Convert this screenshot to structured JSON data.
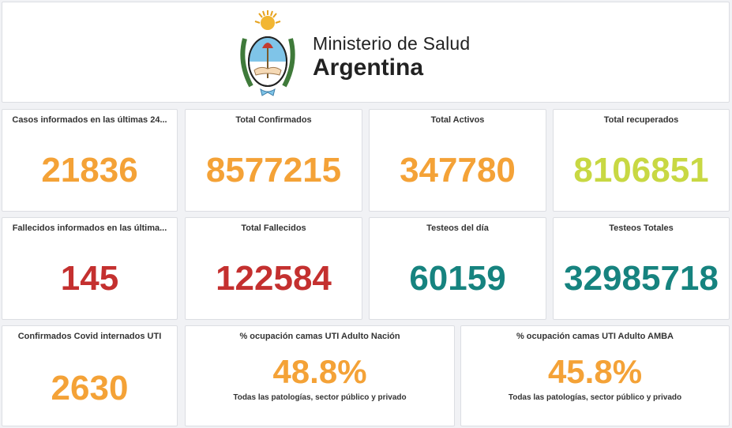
{
  "header": {
    "line1": "Ministerio de Salud",
    "line2": "Argentina"
  },
  "colors": {
    "orange": "#f4a237",
    "lime": "#c8d843",
    "red": "#c4302f",
    "teal": "#16837f"
  },
  "cards": [
    {
      "title": "Casos informados en las últimas 24...",
      "value": "21836",
      "color": "orange"
    },
    {
      "title": "Total Confirmados",
      "value": "8577215",
      "color": "orange"
    },
    {
      "title": "Total Activos",
      "value": "347780",
      "color": "orange"
    },
    {
      "title": "Total recuperados",
      "value": "8106851",
      "color": "lime"
    },
    {
      "title": "Fallecidos informados en las últimа...",
      "value": "145",
      "color": "red"
    },
    {
      "title": "Total Fallecidos",
      "value": "122584",
      "color": "red"
    },
    {
      "title": "Testeos del día",
      "value": "60159",
      "color": "teal"
    },
    {
      "title": "Testeos Totales",
      "value": "32985718",
      "color": "teal"
    },
    {
      "title": "Confirmados Covid internados UTI",
      "value": "2630",
      "color": "orange"
    },
    {
      "title": "% ocupación camas UTI Adulto Nación",
      "value": "48.8%",
      "color": "orange",
      "subtitle": "Todas las patologías, sector público y privado"
    },
    {
      "title": "% ocupación camas UTI Adulto AMBA",
      "value": "45.8%",
      "color": "orange",
      "subtitle": "Todas las patologías, sector público y privado"
    }
  ]
}
